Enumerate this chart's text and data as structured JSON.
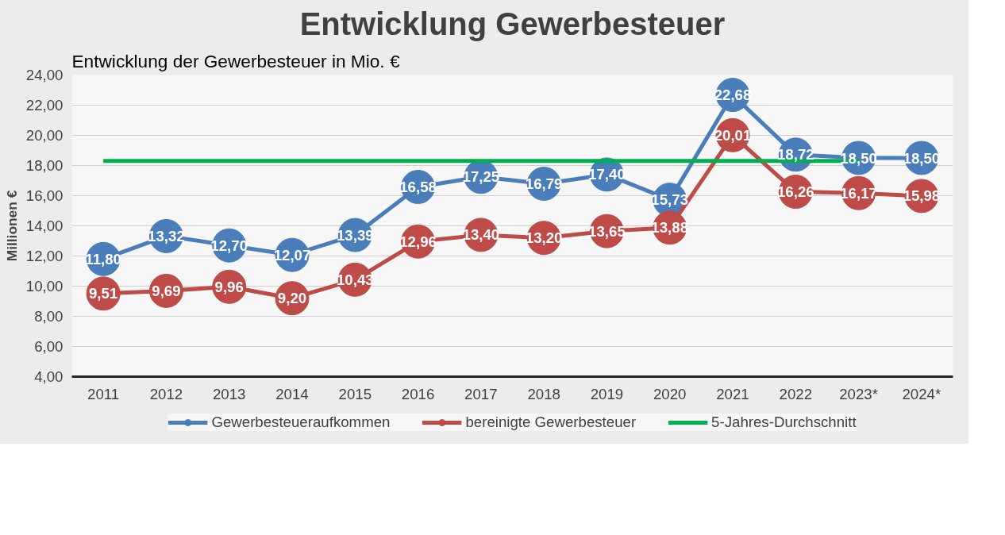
{
  "chart_data": {
    "type": "line",
    "title": "Entwicklung Gewerbesteuer",
    "ylabel": "Millionen €",
    "annotations": [
      "Entwicklung der Gewerbesteuer in Mio. €"
    ],
    "categories": [
      "2011",
      "2012",
      "2013",
      "2014",
      "2015",
      "2016",
      "2017",
      "2018",
      "2019",
      "2020",
      "2021",
      "2022",
      "2023*",
      "2024*"
    ],
    "series": [
      {
        "name": "Gewerbesteueraufkommen",
        "color": "#4a7ebb",
        "marker": "circle",
        "values": [
          11.8,
          13.32,
          12.7,
          12.07,
          13.39,
          16.58,
          17.25,
          16.79,
          17.4,
          15.73,
          22.68,
          18.72,
          18.5,
          18.5
        ],
        "value_labels": [
          "11,80",
          "13,32",
          "12,70",
          "12,07",
          "13,39",
          "16,58",
          "17,25",
          "16,79",
          "17,40",
          "15,73",
          "22,68",
          "18,72",
          "18,50",
          "18,50"
        ]
      },
      {
        "name": "bereinigte Gewerbesteuer",
        "color": "#be4b48",
        "marker": "circle",
        "values": [
          9.51,
          9.69,
          9.96,
          9.2,
          10.43,
          12.96,
          13.4,
          13.2,
          13.65,
          13.88,
          20.01,
          16.26,
          16.17,
          15.98
        ],
        "value_labels": [
          "9,51",
          "9,69",
          "9,96",
          "9,20",
          "10,43",
          "12,96",
          "13,40",
          "13,20",
          "13,65",
          "13,88",
          "20,01",
          "16,26",
          "16,17",
          "15,98"
        ]
      },
      {
        "name": "5-Jahres-Durchschnitt",
        "color": "#00b050",
        "marker": "none",
        "values": [
          18.3,
          18.3,
          18.3,
          18.3,
          18.3,
          18.3,
          18.3,
          18.3,
          18.3,
          18.3,
          18.3,
          18.3,
          18.3,
          null
        ]
      }
    ],
    "ylim": [
      4,
      24
    ],
    "yticks": [
      {
        "value": 4,
        "label": "4,00"
      },
      {
        "value": 6,
        "label": "6,00"
      },
      {
        "value": 8,
        "label": "8,00"
      },
      {
        "value": 10,
        "label": "10,00"
      },
      {
        "value": 12,
        "label": "12,00"
      },
      {
        "value": 14,
        "label": "14,00"
      },
      {
        "value": 16,
        "label": "16,00"
      },
      {
        "value": 18,
        "label": "18,00"
      },
      {
        "value": 20,
        "label": "20,00"
      },
      {
        "value": 22,
        "label": "22,00"
      },
      {
        "value": 24,
        "label": "24,00"
      }
    ],
    "grid": "y",
    "legend": "bottom",
    "line_style": "solid"
  }
}
